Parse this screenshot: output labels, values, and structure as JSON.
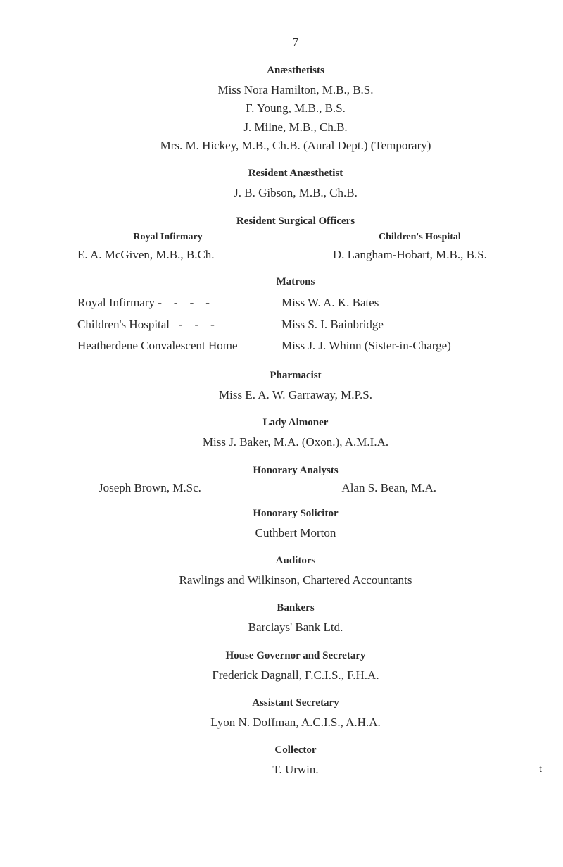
{
  "page_number": "7",
  "anaesthetists": {
    "heading": "Anæsthetists",
    "lines": [
      "Miss Nora Hamilton, M.B., B.S.",
      "F. Young, M.B., B.S.",
      "J. Milne, M.B., Ch.B.",
      "Mrs. M. Hickey, M.B., Ch.B.   (Aural Dept.)   (Temporary)"
    ]
  },
  "resident_anaesthetist": {
    "heading": "Resident Anæsthetist",
    "line": "J. B. Gibson, M.B., Ch.B."
  },
  "resident_surgical": {
    "heading": "Resident Surgical Officers",
    "left_heading": "Royal Infirmary",
    "left_line": "E. A. McGiven, M.B., B.Ch.",
    "right_heading": "Children's Hospital",
    "right_line": "D. Langham-Hobart, M.B., B.S."
  },
  "matrons": {
    "heading": "Matrons",
    "rows": [
      {
        "left": "Royal Infirmary -    -    -    -",
        "right": "Miss W. A. K. Bates"
      },
      {
        "left": "Children's Hospital   -    -    -",
        "right": "Miss S. I. Bainbridge"
      },
      {
        "left": "Heatherdene Convalescent Home",
        "right": "Miss J. J. Whinn  (Sister-in-Charge)"
      }
    ]
  },
  "pharmacist": {
    "heading": "Pharmacist",
    "line": "Miss E. A. W. Garraway, M.P.S."
  },
  "lady_almoner": {
    "heading": "Lady Almoner",
    "line": "Miss J. Baker, M.A. (Oxon.), A.M.I.A."
  },
  "honorary_analysts": {
    "heading": "Honorary Analysts",
    "left": "Joseph Brown, M.Sc.",
    "right": "Alan S. Bean, M.A."
  },
  "honorary_solicitor": {
    "heading": "Honorary Solicitor",
    "line": "Cuthbert Morton"
  },
  "auditors": {
    "heading": "Auditors",
    "line": "Rawlings and Wilkinson, Chartered Accountants"
  },
  "bankers": {
    "heading": "Bankers",
    "line": "Barclays' Bank Ltd."
  },
  "house_governor": {
    "heading": "House Governor and Secretary",
    "line": "Frederick Dagnall, F.C.I.S., F.H.A."
  },
  "assistant_secretary": {
    "heading": "Assistant Secretary",
    "line": "Lyon N. Doffman, A.C.I.S., A.H.A."
  },
  "collector": {
    "heading": "Collector",
    "line": "T. Urwin."
  },
  "footnote": "t"
}
